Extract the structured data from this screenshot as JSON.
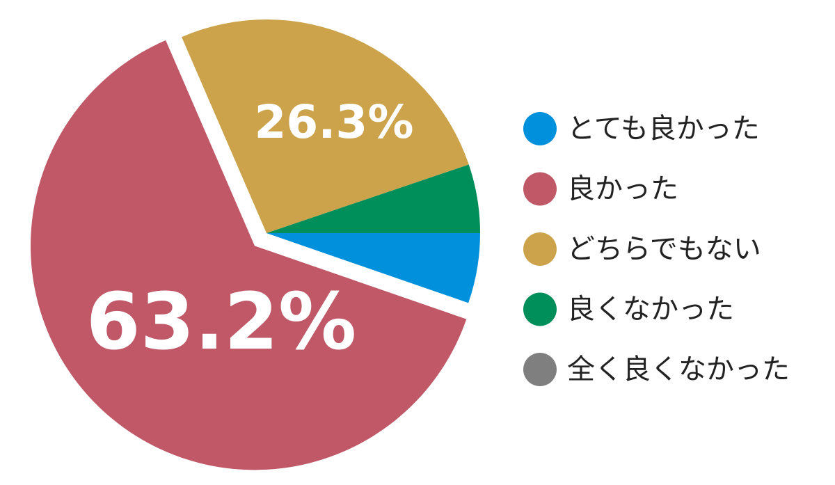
{
  "chart_data": {
    "type": "pie",
    "categories": [
      "とても良かった",
      "良かった",
      "どちらでもない",
      "良くなかった",
      "全く良くなかった"
    ],
    "values": [
      5.3,
      63.2,
      26.3,
      5.2,
      0
    ],
    "value_labels": [
      null,
      "63.2%",
      "26.3%",
      null,
      null
    ],
    "colors": [
      "#0090dc",
      "#c05868",
      "#cca34a",
      "#008e5a",
      "#7f7f7f"
    ],
    "legend": "right"
  }
}
